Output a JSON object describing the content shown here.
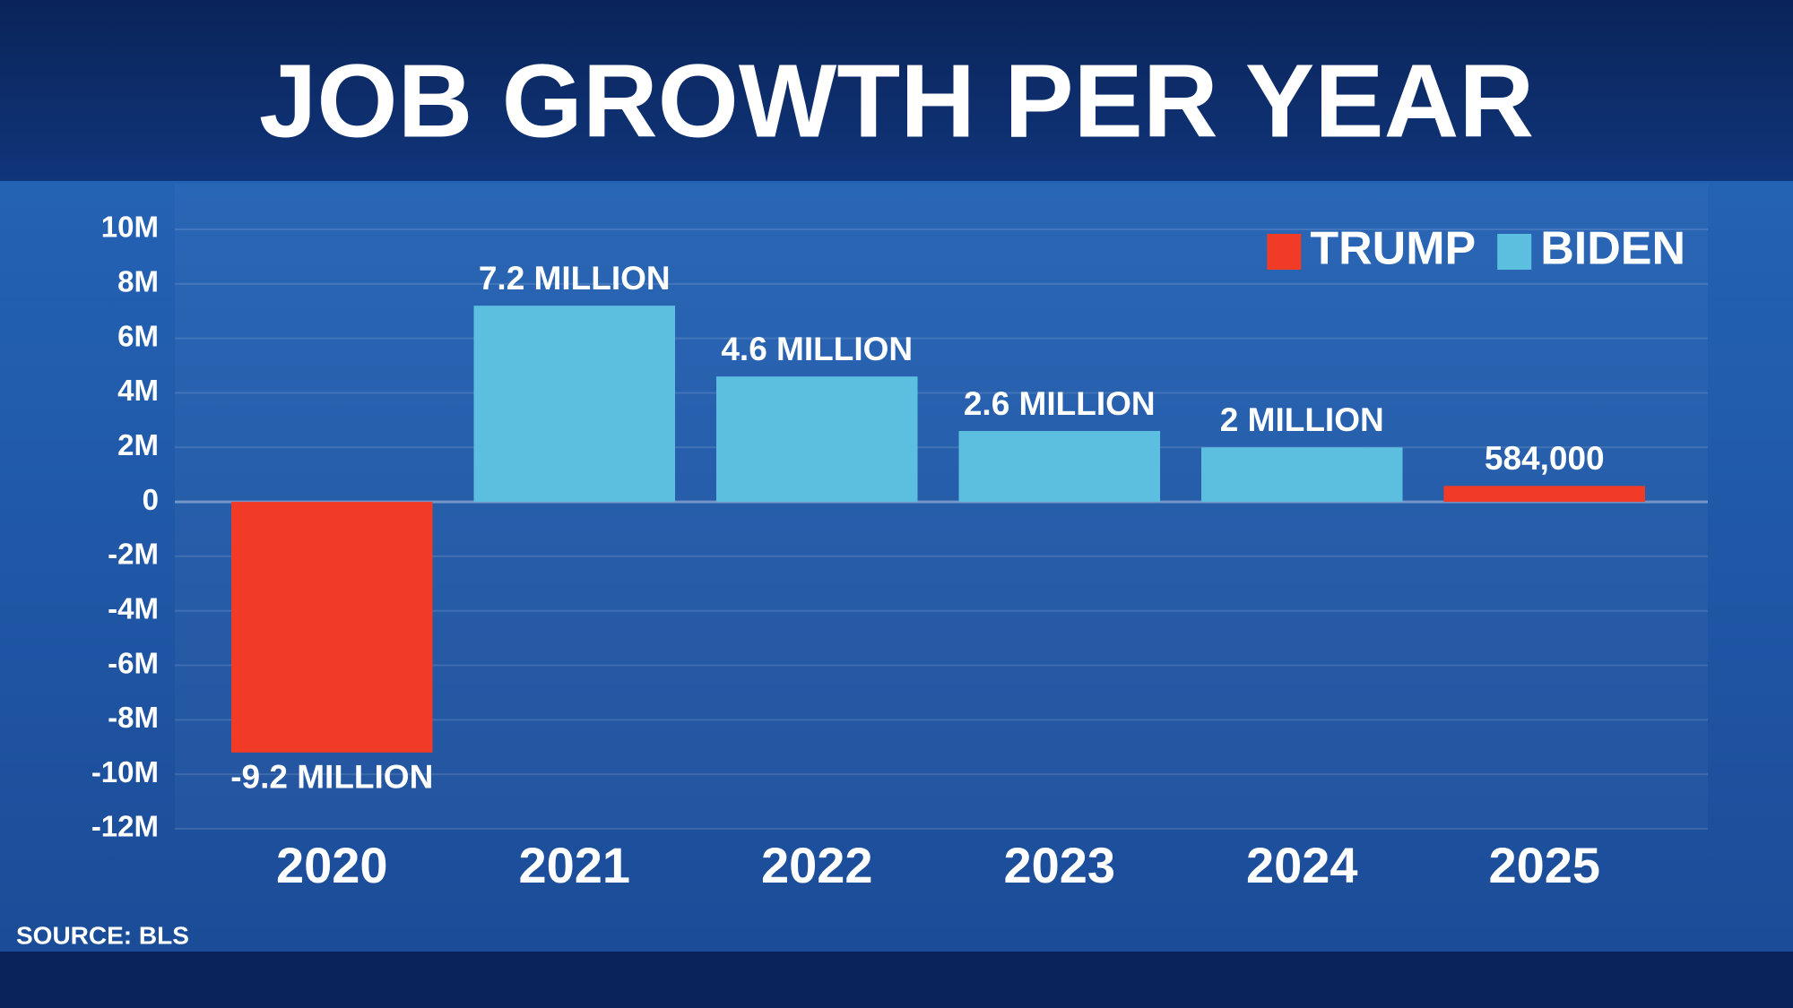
{
  "chart_data": {
    "type": "bar",
    "title": "JOB GROWTH PER YEAR",
    "categories": [
      "2020",
      "2021",
      "2022",
      "2023",
      "2024",
      "2025"
    ],
    "series": [
      {
        "name": "TRUMP",
        "color": "#f23b27",
        "values": [
          -9200000,
          null,
          null,
          null,
          null,
          584000
        ],
        "value_labels": [
          "-9.2 MILLION",
          null,
          null,
          null,
          null,
          "584,000"
        ]
      },
      {
        "name": "BIDEN",
        "color": "#5cbfe0",
        "values": [
          null,
          7200000,
          4600000,
          2600000,
          2000000,
          null
        ],
        "value_labels": [
          null,
          "7.2 MILLION",
          "4.6 MILLION",
          "2.6 MILLION",
          "2 MILLION",
          null
        ]
      }
    ],
    "ylim": [
      -12000000,
      10000000
    ],
    "yticks": [
      {
        "value": 10000000,
        "label": "10M"
      },
      {
        "value": 8000000,
        "label": "8M"
      },
      {
        "value": 6000000,
        "label": "6M"
      },
      {
        "value": 4000000,
        "label": "4M"
      },
      {
        "value": 2000000,
        "label": "2M"
      },
      0,
      {
        "value": -2000000,
        "label": "-2M"
      },
      {
        "value": -4000000,
        "label": "-4M"
      },
      {
        "value": -6000000,
        "label": "-6M"
      },
      {
        "value": -8000000,
        "label": "-8M"
      },
      {
        "value": -10000000,
        "label": "-10M"
      },
      {
        "value": -12000000,
        "label": "-12M"
      }
    ],
    "grid": true,
    "legend": "top-right",
    "source": "SOURCE: BLS"
  }
}
